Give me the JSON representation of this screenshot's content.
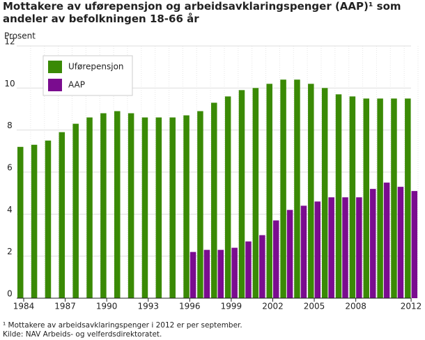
{
  "chart_data": {
    "type": "bar",
    "title": "Mottakere av uførepensjon og arbeidsavklaringspenger (AAP)¹ som andeler av befolkningen 18-66 år",
    "y_label": "Prosent",
    "footnote": "¹ Mottakere av arbeidsavklaringspenger i 2012 er per september.",
    "source": "Kilde: NAV Arbeids- og velferdsdirektoratet.",
    "categories": [
      "1984",
      null,
      null,
      "1987",
      null,
      null,
      "1990",
      null,
      null,
      "1993",
      null,
      null,
      "1996",
      null,
      null,
      "1999",
      null,
      null,
      "2002",
      null,
      null,
      "2005",
      null,
      null,
      "2008",
      null,
      null,
      null,
      "2012"
    ],
    "series": [
      {
        "name": "Uførepensjon",
        "color": "#3a8a05",
        "values": [
          7.2,
          7.3,
          7.5,
          7.9,
          8.3,
          8.6,
          8.8,
          8.9,
          8.8,
          8.6,
          8.6,
          8.6,
          8.7,
          8.9,
          9.3,
          9.6,
          9.9,
          10.0,
          10.2,
          10.4,
          10.4,
          10.2,
          10.0,
          9.7,
          9.6,
          9.5,
          9.5,
          9.5,
          9.5
        ]
      },
      {
        "name": "AAP",
        "color": "#7a0c8f",
        "values": [
          null,
          null,
          null,
          null,
          null,
          null,
          null,
          null,
          null,
          null,
          null,
          null,
          2.2,
          2.3,
          2.3,
          2.4,
          2.7,
          3.0,
          3.7,
          4.2,
          4.4,
          4.6,
          4.8,
          4.8,
          4.8,
          5.2,
          5.5,
          5.3,
          5.1
        ]
      }
    ],
    "ylim": [
      0,
      12
    ],
    "yticks": [
      0,
      2,
      4,
      6,
      8,
      10,
      12
    ],
    "grid": true
  }
}
